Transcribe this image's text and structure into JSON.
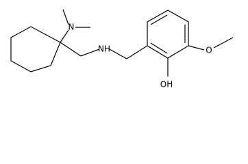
{
  "atoms": {
    "dimethylamine_n": "N",
    "amine_nh": "NH",
    "hydroxyl": "OH",
    "methoxy_o": "O"
  }
}
